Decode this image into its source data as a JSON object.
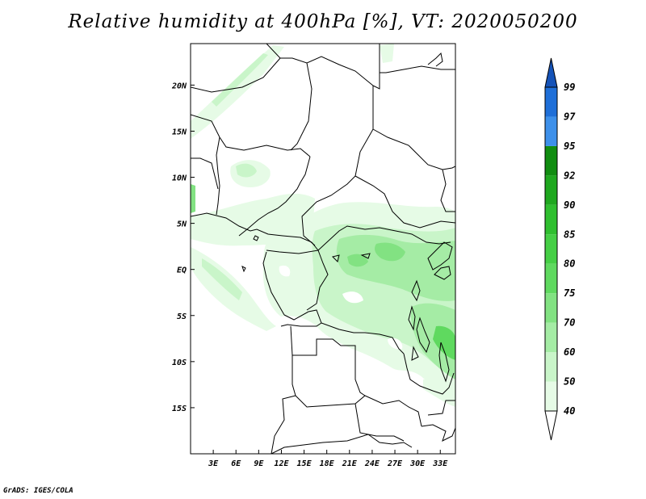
{
  "title": "Relative humidity at 400hPa [%], VT: 2020050200",
  "credit": "GrADS: IGES/COLA",
  "map": {
    "lat_ticks": [
      "20N",
      "15N",
      "10N",
      "5N",
      "EQ",
      "5S",
      "10S",
      "15S"
    ],
    "lon_ticks": [
      "3E",
      "6E",
      "9E",
      "12E",
      "15E",
      "18E",
      "21E",
      "24E",
      "27E",
      "30E",
      "33E"
    ],
    "lat_range": [
      -20,
      24.5
    ],
    "lon_range": [
      0,
      35
    ]
  },
  "colorbar": {
    "levels": [
      "40",
      "50",
      "60",
      "70",
      "75",
      "80",
      "85",
      "90",
      "92",
      "95",
      "97",
      "99"
    ],
    "colors": [
      "#ffffff",
      "#e6fbe6",
      "#c9f5c9",
      "#a5eca5",
      "#82e282",
      "#5fd95f",
      "#45cf45",
      "#2fbf2f",
      "#1fa81f",
      "#118d11",
      "#3d90ea",
      "#1f6fd8",
      "#1553b8"
    ]
  }
}
